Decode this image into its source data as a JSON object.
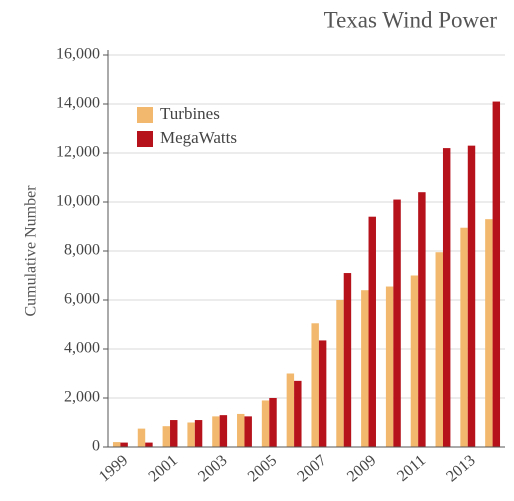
{
  "chart_data": {
    "type": "bar",
    "title": "Texas Wind Power",
    "y_label": "Cumulative Number",
    "categories": [
      "1999",
      null,
      "2001",
      null,
      "2003",
      null,
      "2005",
      null,
      "2007",
      null,
      "2009",
      null,
      "2011",
      null,
      "2013",
      null
    ],
    "series": [
      {
        "name": "Turbines",
        "color": "#f2b96e",
        "values": [
          200,
          750,
          850,
          1000,
          1250,
          1350,
          1900,
          3000,
          5050,
          6000,
          6400,
          6550,
          7000,
          7950,
          8950,
          9300
        ]
      },
      {
        "name": "MegaWatts",
        "color": "#b5121b",
        "values": [
          180,
          180,
          1100,
          1100,
          1300,
          1250,
          2000,
          2700,
          4350,
          7100,
          9400,
          10100,
          10400,
          12200,
          12300,
          14100
        ]
      }
    ],
    "ylim": [
      0,
      16000
    ],
    "yticks": [
      0,
      {
        "value": 2000,
        "label": "2,000"
      },
      {
        "value": 4000,
        "label": "4,000"
      },
      {
        "value": 6000,
        "label": "6,000"
      },
      {
        "value": 8000,
        "label": "8,000"
      },
      {
        "value": 10000,
        "label": "10,000"
      },
      {
        "value": 12000,
        "label": "12,000"
      },
      {
        "value": 14000,
        "label": "14,000"
      },
      {
        "value": 16000,
        "label": "16,000"
      }
    ],
    "grid": true,
    "legend": "upper left"
  }
}
